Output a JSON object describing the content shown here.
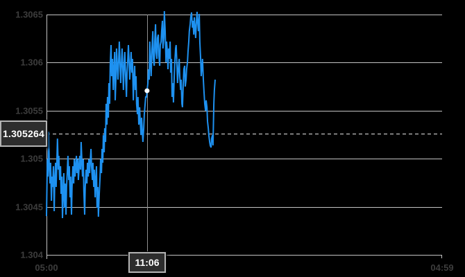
{
  "chart_data": {
    "type": "line",
    "title": "Intraday price line chart with crosshair",
    "legend": "none",
    "grid": "horizontal",
    "x_axis": {
      "start_minute": 0,
      "end_minute": 1440,
      "tick_labels": [
        {
          "minute": 0,
          "label": "05:00"
        },
        {
          "minute": 1439,
          "label": "04:59"
        }
      ],
      "crosshair": {
        "minute": 366,
        "label": "11:06",
        "price": 1.305707
      }
    },
    "y_axis": {
      "min": 1.304,
      "max": 1.3065,
      "step": 0.0005,
      "tick_labels": [
        "1.3065",
        "1.306",
        "1.3055",
        "1.305",
        "1.3045",
        "1.304"
      ]
    },
    "current_price": {
      "value": 1.305264,
      "label": "1.305264"
    },
    "series": [
      [
        0,
        1.304403
      ],
      [
        3,
        1.304994
      ],
      [
        5,
        1.304814
      ],
      [
        8,
        1.305282
      ],
      [
        10,
        1.304922
      ],
      [
        13,
        1.304742
      ],
      [
        15,
        1.304958
      ],
      [
        18,
        1.304562
      ],
      [
        20,
        1.304814
      ],
      [
        23,
        1.304706
      ],
      [
        25,
        1.304922
      ],
      [
        28,
        1.304454
      ],
      [
        30,
        1.304778
      ],
      [
        33,
        1.304958
      ],
      [
        35,
        1.304706
      ],
      [
        38,
        1.304994
      ],
      [
        40,
        1.30521
      ],
      [
        43,
        1.304886
      ],
      [
        45,
        1.30503
      ],
      [
        48,
        1.304778
      ],
      [
        51,
        1.304922
      ],
      [
        53,
        1.304634
      ],
      [
        56,
        1.304814
      ],
      [
        58,
        1.304382
      ],
      [
        61,
        1.304634
      ],
      [
        63,
        1.30485
      ],
      [
        66,
        1.30449
      ],
      [
        68,
        1.304742
      ],
      [
        71,
        1.304418
      ],
      [
        73,
        1.304706
      ],
      [
        76,
        1.304886
      ],
      [
        78,
        1.30503
      ],
      [
        81,
        1.304778
      ],
      [
        83,
        1.304922
      ],
      [
        86,
        1.304598
      ],
      [
        88,
        1.304814
      ],
      [
        91,
        1.304418
      ],
      [
        93,
        1.304706
      ],
      [
        96,
        1.304922
      ],
      [
        99,
        1.304742
      ],
      [
        101,
        1.304994
      ],
      [
        104,
        1.304814
      ],
      [
        106,
        1.304922
      ],
      [
        109,
        1.30503
      ],
      [
        111,
        1.30485
      ],
      [
        114,
        1.304994
      ],
      [
        116,
        1.304778
      ],
      [
        119,
        1.304922
      ],
      [
        121,
        1.30503
      ],
      [
        124,
        1.304886
      ],
      [
        126,
        1.305174
      ],
      [
        129,
        1.304958
      ],
      [
        131,
        1.304814
      ],
      [
        134,
        1.304994
      ],
      [
        136,
        1.30467
      ],
      [
        139,
        1.304418
      ],
      [
        141,
        1.304706
      ],
      [
        144,
        1.304886
      ],
      [
        147,
        1.304742
      ],
      [
        149,
        1.304958
      ],
      [
        152,
        1.304814
      ],
      [
        154,
        1.304994
      ],
      [
        157,
        1.30485
      ],
      [
        159,
        1.304958
      ],
      [
        162,
        1.305102
      ],
      [
        164,
        1.304922
      ],
      [
        167,
        1.304778
      ],
      [
        169,
        1.304958
      ],
      [
        172,
        1.304706
      ],
      [
        174,
        1.304886
      ],
      [
        177,
        1.304598
      ],
      [
        179,
        1.304778
      ],
      [
        182,
        1.304922
      ],
      [
        184,
        1.30449
      ],
      [
        187,
        1.304706
      ],
      [
        189,
        1.304396
      ],
      [
        192,
        1.304634
      ],
      [
        195,
        1.304814
      ],
      [
        197,
        1.304994
      ],
      [
        200,
        1.30485
      ],
      [
        202,
        1.305102
      ],
      [
        205,
        1.304958
      ],
      [
        207,
        1.305246
      ],
      [
        210,
        1.305066
      ],
      [
        212,
        1.305318
      ],
      [
        215,
        1.305174
      ],
      [
        217,
        1.305571
      ],
      [
        220,
        1.305354
      ],
      [
        222,
        1.305643
      ],
      [
        225,
        1.305427
      ],
      [
        227,
        1.305787
      ],
      [
        230,
        1.305571
      ],
      [
        232,
        1.305967
      ],
      [
        235,
        1.306183
      ],
      [
        237,
        1.305859
      ],
      [
        240,
        1.306039
      ],
      [
        243,
        1.305715
      ],
      [
        245,
        1.305931
      ],
      [
        248,
        1.306111
      ],
      [
        250,
        1.305607
      ],
      [
        253,
        1.305859
      ],
      [
        255,
        1.306147
      ],
      [
        258,
        1.305967
      ],
      [
        260,
        1.305823
      ],
      [
        263,
        1.306039
      ],
      [
        265,
        1.306219
      ],
      [
        268,
        1.305967
      ],
      [
        270,
        1.305787
      ],
      [
        273,
        1.306003
      ],
      [
        275,
        1.306147
      ],
      [
        278,
        1.305931
      ],
      [
        280,
        1.305715
      ],
      [
        283,
        1.306003
      ],
      [
        285,
        1.306111
      ],
      [
        288,
        1.305859
      ],
      [
        291,
        1.305643
      ],
      [
        293,
        1.305895
      ],
      [
        296,
        1.306039
      ],
      [
        298,
        1.306183
      ],
      [
        301,
        1.306003
      ],
      [
        303,
        1.305823
      ],
      [
        306,
        1.305967
      ],
      [
        308,
        1.306111
      ],
      [
        311,
        1.305895
      ],
      [
        313,
        1.306039
      ],
      [
        316,
        1.305607
      ],
      [
        318,
        1.305823
      ],
      [
        321,
        1.305967
      ],
      [
        323,
        1.305715
      ],
      [
        326,
        1.305859
      ],
      [
        328,
        1.305571
      ],
      [
        331,
        1.305463
      ],
      [
        333,
        1.305643
      ],
      [
        336,
        1.305354
      ],
      [
        339,
        1.305535
      ],
      [
        341,
        1.30539
      ],
      [
        344,
        1.305246
      ],
      [
        346,
        1.305427
      ],
      [
        349,
        1.305282
      ],
      [
        351,
        1.305174
      ],
      [
        354,
        1.305318
      ],
      [
        356,
        1.305463
      ],
      [
        359,
        1.305571
      ],
      [
        361,
        1.305643
      ],
      [
        364,
        1.305643
      ],
      [
        366,
        1.305707
      ],
      [
        369,
        1.305787
      ],
      [
        371,
        1.305931
      ],
      [
        374,
        1.305823
      ],
      [
        376,
        1.306219
      ],
      [
        379,
        1.306003
      ],
      [
        381,
        1.305859
      ],
      [
        384,
        1.306147
      ],
      [
        387,
        1.306327
      ],
      [
        389,
        1.306039
      ],
      [
        392,
        1.305967
      ],
      [
        394,
        1.306219
      ],
      [
        397,
        1.306399
      ],
      [
        399,
        1.306111
      ],
      [
        402,
        1.306039
      ],
      [
        404,
        1.306255
      ],
      [
        407,
        1.306291
      ],
      [
        409,
        1.306075
      ],
      [
        412,
        1.305967
      ],
      [
        414,
        1.306183
      ],
      [
        417,
        1.306219
      ],
      [
        419,
        1.306327
      ],
      [
        422,
        1.306435
      ],
      [
        424,
        1.306147
      ],
      [
        427,
        1.306255
      ],
      [
        429,
        1.306536
      ],
      [
        432,
        1.306327
      ],
      [
        435,
        1.306003
      ],
      [
        437,
        1.306219
      ],
      [
        440,
        1.306111
      ],
      [
        442,
        1.305931
      ],
      [
        445,
        1.306147
      ],
      [
        447,
        1.306039
      ],
      [
        450,
        1.306219
      ],
      [
        452,
        1.305895
      ],
      [
        455,
        1.306039
      ],
      [
        457,
        1.305643
      ],
      [
        460,
        1.305787
      ],
      [
        462,
        1.305585
      ],
      [
        465,
        1.305859
      ],
      [
        467,
        1.306003
      ],
      [
        470,
        1.306147
      ],
      [
        472,
        1.306183
      ],
      [
        475,
        1.305967
      ],
      [
        477,
        1.305787
      ],
      [
        480,
        1.305931
      ],
      [
        483,
        1.306039
      ],
      [
        485,
        1.305859
      ],
      [
        488,
        1.305715
      ],
      [
        490,
        1.305823
      ],
      [
        493,
        1.305571
      ],
      [
        495,
        1.305535
      ],
      [
        498,
        1.305787
      ],
      [
        500,
        1.305931
      ],
      [
        503,
        1.305967
      ],
      [
        505,
        1.305751
      ],
      [
        508,
        1.305823
      ],
      [
        510,
        1.305931
      ],
      [
        513,
        1.306003
      ],
      [
        515,
        1.306111
      ],
      [
        518,
        1.306219
      ],
      [
        520,
        1.306327
      ],
      [
        523,
        1.306399
      ],
      [
        525,
        1.306471
      ],
      [
        528,
        1.306522
      ],
      [
        531,
        1.306363
      ],
      [
        533,
        1.306435
      ],
      [
        536,
        1.306291
      ],
      [
        538,
        1.306471
      ],
      [
        541,
        1.306363
      ],
      [
        543,
        1.306255
      ],
      [
        546,
        1.306435
      ],
      [
        548,
        1.306529
      ],
      [
        551,
        1.306399
      ],
      [
        553,
        1.306327
      ],
      [
        556,
        1.306507
      ],
      [
        558,
        1.306219
      ],
      [
        561,
        1.306039
      ],
      [
        563,
        1.305859
      ],
      [
        566,
        1.305967
      ],
      [
        568,
        1.306039
      ],
      [
        571,
        1.305823
      ],
      [
        573,
        1.305715
      ],
      [
        576,
        1.305571
      ],
      [
        579,
        1.305499
      ],
      [
        581,
        1.305607
      ],
      [
        584,
        1.305535
      ],
      [
        586,
        1.30539
      ],
      [
        589,
        1.305318
      ],
      [
        591,
        1.305246
      ],
      [
        594,
        1.305174
      ],
      [
        596,
        1.305138
      ],
      [
        599,
        1.305117
      ],
      [
        601,
        1.30521
      ],
      [
        604,
        1.305246
      ],
      [
        606,
        1.305138
      ],
      [
        609,
        1.305571
      ],
      [
        611,
        1.305715
      ],
      [
        614,
        1.305823
      ]
    ]
  },
  "colors": {
    "background": "#000000",
    "line": "#1E91F0",
    "grid": "#c4c4c4",
    "axis_labels": "#3d3d3d",
    "crosshair": "#909090",
    "dashed_price_line": "#a8a8a8",
    "marker_dot": "#ffffff",
    "badge_bg": "#2d2d2d",
    "badge_border": "#b3b3b3",
    "badge_text": "#ffffff"
  }
}
